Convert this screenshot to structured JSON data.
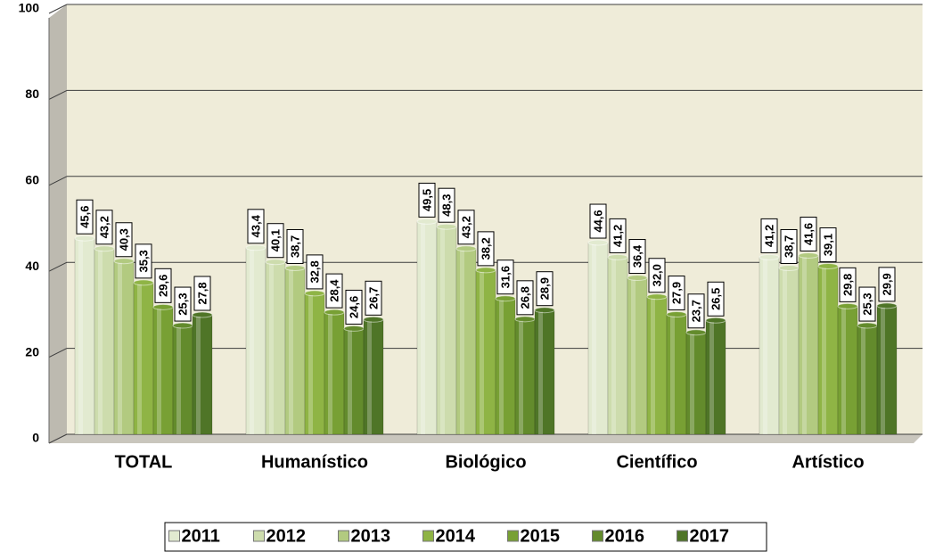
{
  "chart_data": {
    "type": "bar",
    "categories": [
      "TOTAL",
      "Humanístico",
      "Biológico",
      "Científico",
      "Artístico"
    ],
    "series": [
      {
        "name": "2011",
        "color": "#e2ead0",
        "values": [
          45.6,
          43.4,
          49.5,
          44.6,
          41.2
        ],
        "value_labels": [
          "45,6",
          "43,4",
          "49,5",
          "44,6",
          "41,2"
        ]
      },
      {
        "name": "2012",
        "color": "#cddcad",
        "values": [
          43.2,
          40.1,
          48.3,
          41.2,
          38.7
        ],
        "value_labels": [
          "43,2",
          "40,1",
          "48,3",
          "41,2",
          "38,7"
        ]
      },
      {
        "name": "2013",
        "color": "#b2ca80",
        "values": [
          40.3,
          38.7,
          43.2,
          36.4,
          41.6
        ],
        "value_labels": [
          "40,3",
          "38,7",
          "43,2",
          "36,4",
          "41,6"
        ]
      },
      {
        "name": "2014",
        "color": "#8fb445",
        "values": [
          35.3,
          32.8,
          38.2,
          32.0,
          39.1
        ],
        "value_labels": [
          "35,3",
          "32,8",
          "38,2",
          "32,0",
          "39,1"
        ]
      },
      {
        "name": "2015",
        "color": "#78a034",
        "values": [
          29.6,
          28.4,
          31.6,
          27.9,
          29.8
        ],
        "value_labels": [
          "29,6",
          "28,4",
          "31,6",
          "27,9",
          "29,8"
        ]
      },
      {
        "name": "2016",
        "color": "#638b2c",
        "values": [
          25.3,
          24.6,
          26.8,
          23.7,
          25.3
        ],
        "value_labels": [
          "25,3",
          "24,6",
          "26,8",
          "23,7",
          "25,3"
        ]
      },
      {
        "name": "2017",
        "color": "#4f7527",
        "values": [
          27.8,
          26.7,
          28.9,
          26.5,
          29.9
        ],
        "value_labels": [
          "27,8",
          "26,7",
          "28,9",
          "26,5",
          "29,9"
        ]
      }
    ],
    "ylim": [
      0,
      100
    ],
    "yticks": [
      0,
      20,
      40,
      60,
      80,
      100
    ],
    "grid": true
  }
}
